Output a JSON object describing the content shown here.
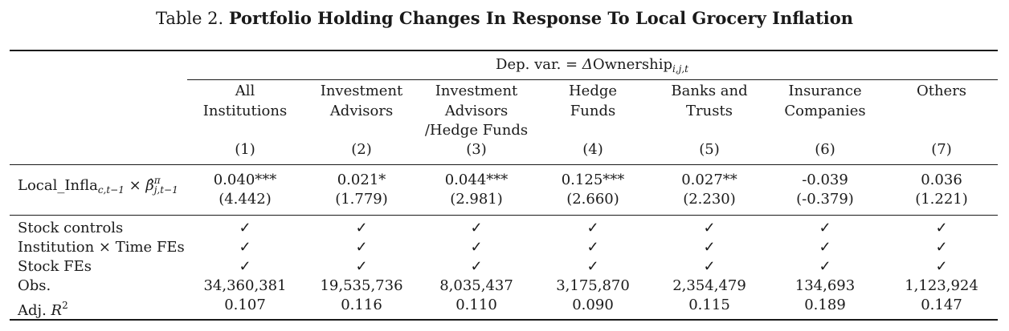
{
  "caption": {
    "prefix": "Table 2.",
    "title": "Portfolio Holding Changes In Response To Local Grocery Inflation"
  },
  "dep_var": {
    "prefix": "Dep. var. = ",
    "symbol": "Δ",
    "word": "Ownership",
    "subscript": "i,j,t"
  },
  "columns": [
    {
      "lines": [
        "All",
        "Institutions"
      ],
      "num": "(1)"
    },
    {
      "lines": [
        "Investment",
        "Advisors"
      ],
      "num": "(2)"
    },
    {
      "lines": [
        "Investment",
        "Advisors",
        "/Hedge Funds"
      ],
      "num": "(3)"
    },
    {
      "lines": [
        "Hedge",
        "Funds"
      ],
      "num": "(4)"
    },
    {
      "lines": [
        "Banks and",
        "Trusts"
      ],
      "num": "(5)"
    },
    {
      "lines": [
        "Insurance",
        "Companies"
      ],
      "num": "(6)"
    },
    {
      "lines": [
        "Others"
      ],
      "num": "(7)"
    }
  ],
  "regressor": {
    "name": "Local_Infla",
    "name_sub": "c,t−1",
    "times": " × ",
    "beta": "β̂",
    "beta_sup": "π",
    "beta_sub": "j,t−1",
    "coefficients": [
      "0.040***",
      "0.021*",
      "0.044***",
      "0.125***",
      "0.027**",
      "-0.039",
      "0.036"
    ],
    "tstats": [
      "(4.442)",
      "(1.779)",
      "(2.981)",
      "(2.660)",
      "(2.230)",
      "(-0.379)",
      "(1.221)"
    ]
  },
  "controls": [
    {
      "label": "Stock controls",
      "marks": [
        "✓",
        "✓",
        "✓",
        "✓",
        "✓",
        "✓",
        "✓"
      ]
    },
    {
      "label": "Institution × Time FEs",
      "marks": [
        "✓",
        "✓",
        "✓",
        "✓",
        "✓",
        "✓",
        "✓"
      ]
    },
    {
      "label": "Stock FEs",
      "marks": [
        "✓",
        "✓",
        "✓",
        "✓",
        "✓",
        "✓",
        "✓"
      ]
    }
  ],
  "obs": {
    "label": "Obs.",
    "values": [
      "34,360,381",
      "19,535,736",
      "8,035,437",
      "3,175,870",
      "2,354,479",
      "134,693",
      "1,123,924"
    ]
  },
  "adjr2": {
    "label": "Adj. ",
    "symbol": "R",
    "sup": "2",
    "values": [
      "0.107",
      "0.116",
      "0.110",
      "0.090",
      "0.115",
      "0.189",
      "0.147"
    ]
  }
}
